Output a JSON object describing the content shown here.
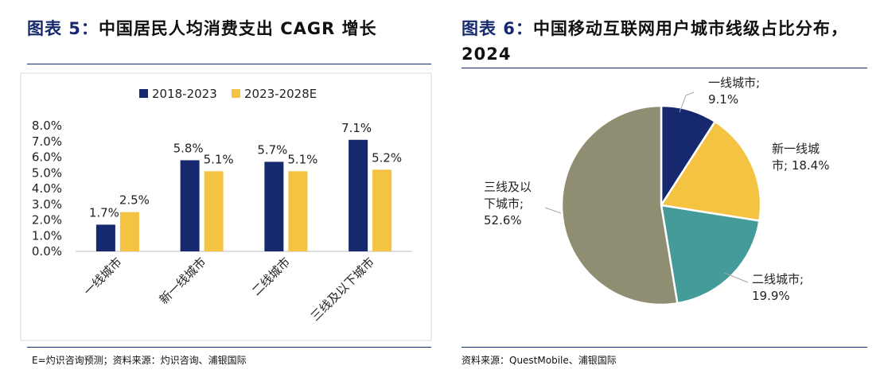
{
  "left": {
    "title_prefix": "图表 5：",
    "title_text": "中国居民人均消费支出 CAGR 增长",
    "source": "E=灼识咨询预测；资料来源：灼识咨询、浦银国际"
  },
  "right": {
    "title_prefix": "图表 6：",
    "title_text": "中国移动互联网用户城市线级占比分布，",
    "title_line2": "2024",
    "source": "资料来源：QuestMobile、浦银国际"
  },
  "chart_data": [
    {
      "type": "bar",
      "categories": [
        "一线城市",
        "新一线城市",
        "二线城市",
        "三线及以下城市"
      ],
      "series": [
        {
          "name": "2018-2023",
          "values": [
            1.7,
            5.8,
            5.7,
            7.1
          ],
          "labels": [
            "1.7%",
            "5.8%",
            "5.7%",
            "7.1%"
          ],
          "color": "#16296e"
        },
        {
          "name": "2023-2028E",
          "values": [
            2.5,
            5.1,
            5.1,
            5.2
          ],
          "labels": [
            "2.5%",
            "5.1%",
            "5.1%",
            "5.2%"
          ],
          "color": "#f5c342"
        }
      ],
      "y_ticks": [
        "8.0%",
        "7.0%",
        "6.0%",
        "5.0%",
        "4.0%",
        "3.0%",
        "2.0%",
        "1.0%",
        "0.0%"
      ],
      "ylim": [
        0,
        8
      ],
      "legend_position": "top",
      "grid": false
    },
    {
      "type": "pie",
      "start_angle_deg": 0,
      "direction": "clockwise",
      "slices": [
        {
          "label_lines": [
            "一线城市;",
            "9.1%"
          ],
          "value": 9.1,
          "color": "#16296e"
        },
        {
          "label_lines": [
            "新一线城",
            "市; 18.4%"
          ],
          "value": 18.4,
          "color": "#f5c342"
        },
        {
          "label_lines": [
            "二线城市;",
            "19.9%"
          ],
          "value": 19.9,
          "color": "#459a9a"
        },
        {
          "label_lines": [
            "三线及以",
            "下城市;",
            "52.6%"
          ],
          "value": 52.6,
          "color": "#8f8d72"
        }
      ]
    }
  ]
}
